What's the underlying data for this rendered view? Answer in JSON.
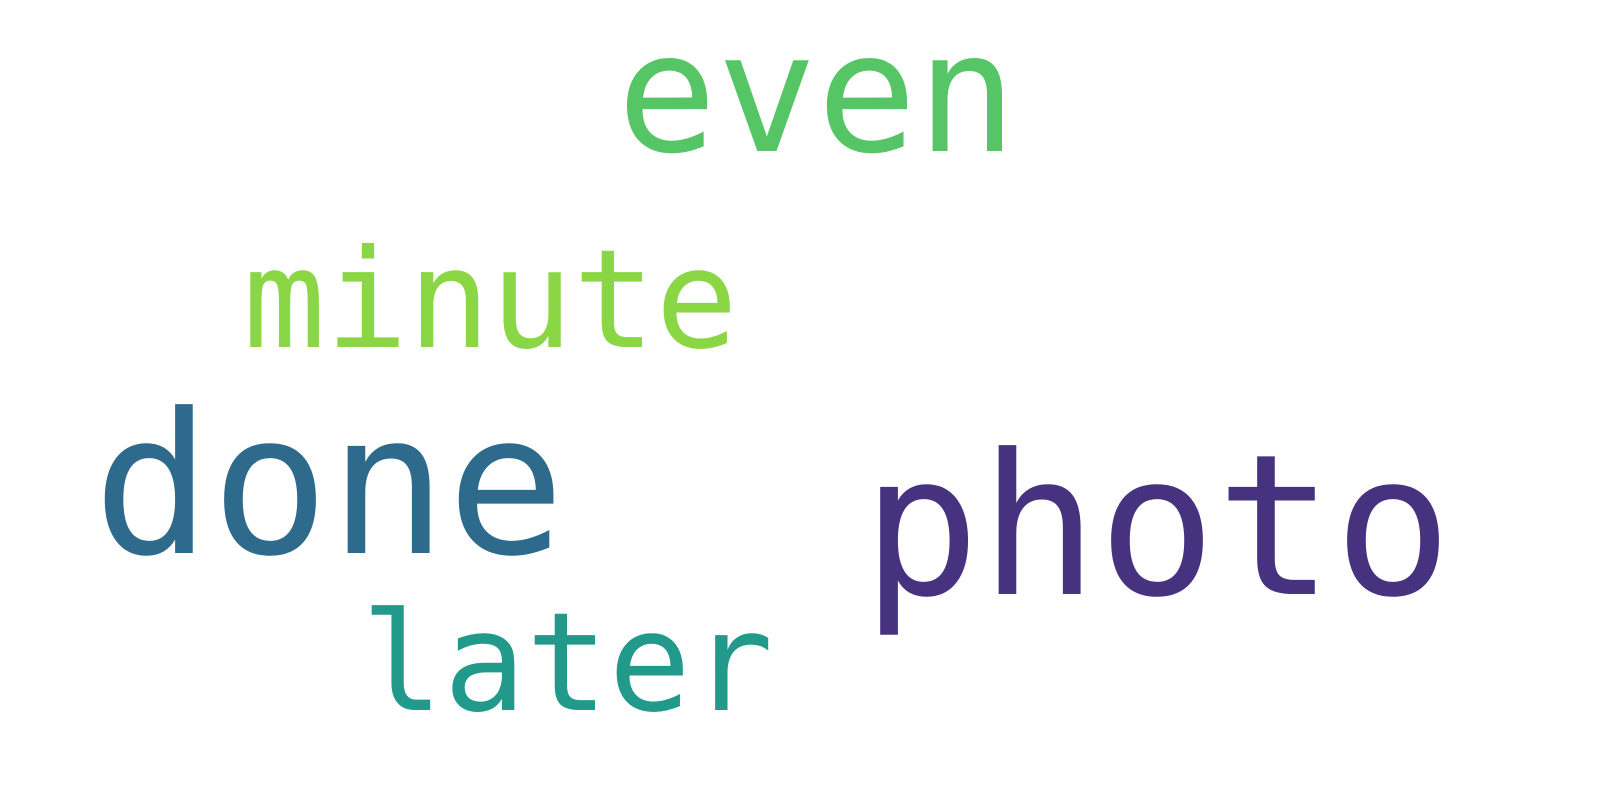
{
  "words": [
    {
      "text": "even",
      "color": "#56c566"
    },
    {
      "text": "minute",
      "color": "#8ad645"
    },
    {
      "text": "done",
      "color": "#2e6a8c"
    },
    {
      "text": "photo",
      "color": "#46327e"
    },
    {
      "text": "later",
      "color": "#21998b"
    }
  ]
}
